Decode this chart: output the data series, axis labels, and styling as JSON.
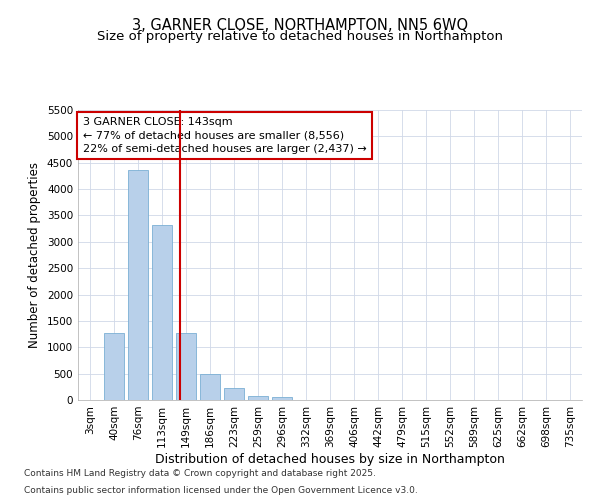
{
  "title1": "3, GARNER CLOSE, NORTHAMPTON, NN5 6WQ",
  "title2": "Size of property relative to detached houses in Northampton",
  "xlabel": "Distribution of detached houses by size in Northampton",
  "ylabel": "Number of detached properties",
  "categories": [
    "3sqm",
    "40sqm",
    "76sqm",
    "113sqm",
    "149sqm",
    "186sqm",
    "223sqm",
    "259sqm",
    "296sqm",
    "332sqm",
    "369sqm",
    "406sqm",
    "442sqm",
    "479sqm",
    "515sqm",
    "552sqm",
    "589sqm",
    "625sqm",
    "662sqm",
    "698sqm",
    "735sqm"
  ],
  "values": [
    0,
    1270,
    4370,
    3320,
    1270,
    500,
    230,
    80,
    50,
    0,
    0,
    0,
    0,
    0,
    0,
    0,
    0,
    0,
    0,
    0,
    0
  ],
  "bar_color": "#b8d0ea",
  "bar_edge_color": "#7bafd4",
  "vline_color": "#cc0000",
  "vline_x": 3.73,
  "annotation_text": "3 GARNER CLOSE: 143sqm\n← 77% of detached houses are smaller (8,556)\n22% of semi-detached houses are larger (2,437) →",
  "annotation_box_color": "#ffffff",
  "annotation_box_edge": "#cc0000",
  "ylim": [
    0,
    5500
  ],
  "yticks": [
    0,
    500,
    1000,
    1500,
    2000,
    2500,
    3000,
    3500,
    4000,
    4500,
    5000,
    5500
  ],
  "footnote1": "Contains HM Land Registry data © Crown copyright and database right 2025.",
  "footnote2": "Contains public sector information licensed under the Open Government Licence v3.0.",
  "fig_bg_color": "#ffffff",
  "plot_bg_color": "#ffffff",
  "grid_color": "#d0d8e8",
  "title_fontsize": 10.5,
  "subtitle_fontsize": 9.5,
  "tick_fontsize": 7.5,
  "ylabel_fontsize": 8.5,
  "xlabel_fontsize": 9,
  "annot_fontsize": 8,
  "footnote_fontsize": 6.5
}
